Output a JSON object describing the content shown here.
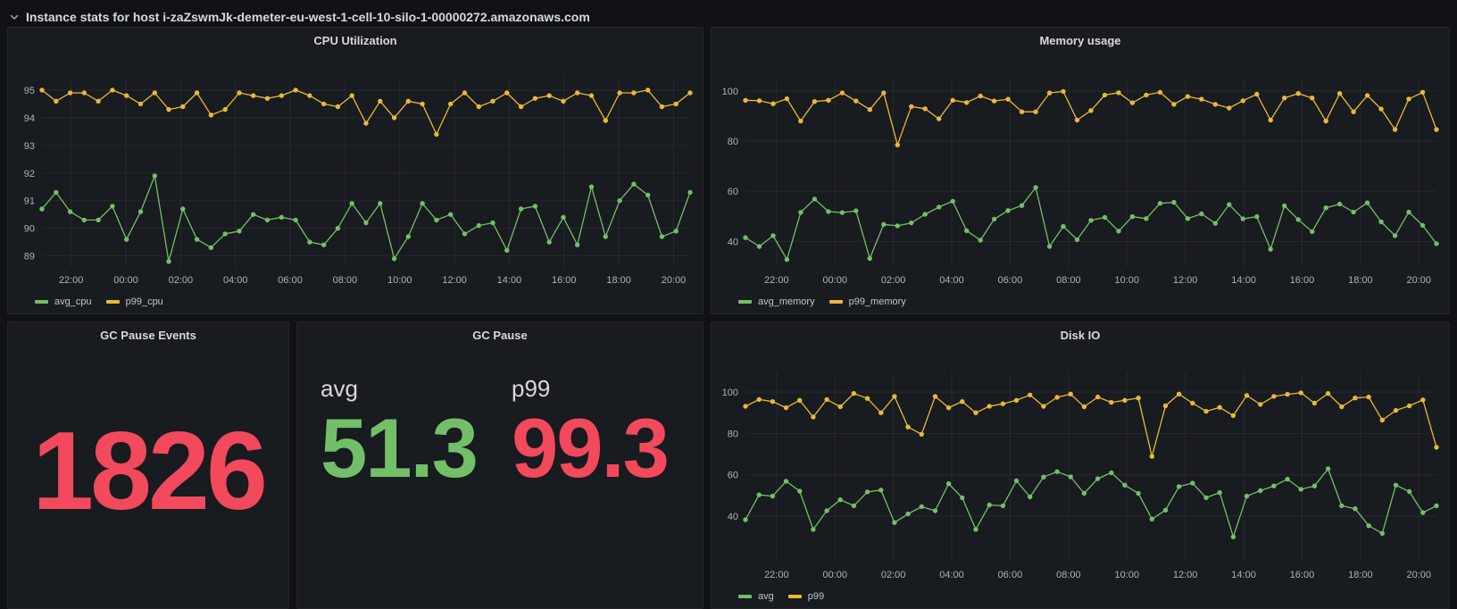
{
  "page": {
    "row_header": {
      "title": "Instance stats for host i-zaZswmJk-demeter-eu-west-1-cell-10-silo-1-00000272.amazonaws.com",
      "chevron_icon": "chevron-down"
    }
  },
  "colors": {
    "green": "#73BF69",
    "yellow": "#EAB839",
    "red": "#F2495C",
    "panel_bg": "#181b1f",
    "page_bg": "#111217",
    "axis_text": "#aeb3bc",
    "grid": "rgba(204,204,220,0.08)"
  },
  "chart_data": [
    {
      "type": "line",
      "title": "CPU Utilization",
      "xlabel": "",
      "ylabel": "",
      "ylim": [
        88.6,
        95.45
      ],
      "y_ticks": [
        89,
        90,
        91,
        92,
        93,
        94,
        95
      ],
      "x_tick_labels": [
        "22:00",
        "00:00",
        "02:00",
        "04:00",
        "06:00",
        "08:00",
        "10:00",
        "12:00",
        "14:00",
        "16:00",
        "18:00",
        "20:00"
      ],
      "x_first_tick_frac": 0.045,
      "x_tick_step_frac": 0.0845,
      "grid": true,
      "legend_position": "bottom-left",
      "series": [
        {
          "name": "avg_cpu",
          "color": "#73BF69",
          "values": [
            90.7,
            91.3,
            90.6,
            90.3,
            90.3,
            90.8,
            89.6,
            90.6,
            91.9,
            88.8,
            90.7,
            89.6,
            89.3,
            89.8,
            89.9,
            90.5,
            90.3,
            90.4,
            90.3,
            89.5,
            89.4,
            90.0,
            90.9,
            90.2,
            90.9,
            88.9,
            89.7,
            90.9,
            90.3,
            90.5,
            89.8,
            90.1,
            90.2,
            89.2,
            90.7,
            90.8,
            89.5,
            90.4,
            89.4,
            91.5,
            89.7,
            91.0,
            91.6,
            91.2,
            89.7,
            89.9,
            91.3
          ]
        },
        {
          "name": "p99_cpu",
          "color": "#EAB839",
          "values": [
            95.0,
            94.6,
            94.9,
            94.9,
            94.6,
            95.0,
            94.8,
            94.5,
            94.9,
            94.3,
            94.4,
            94.9,
            94.1,
            94.3,
            94.9,
            94.8,
            94.7,
            94.8,
            95.0,
            94.8,
            94.5,
            94.4,
            94.8,
            93.8,
            94.6,
            94.0,
            94.6,
            94.5,
            93.4,
            94.5,
            94.9,
            94.4,
            94.6,
            94.9,
            94.4,
            94.7,
            94.8,
            94.6,
            94.9,
            94.8,
            93.9,
            94.9,
            94.9,
            95.0,
            94.4,
            94.5,
            94.9
          ]
        }
      ]
    },
    {
      "type": "line",
      "title": "Memory usage",
      "xlabel": "",
      "ylabel": "",
      "ylim": [
        29.8,
        105.3
      ],
      "y_ticks": [
        40,
        60,
        80,
        100
      ],
      "x_tick_labels": [
        "22:00",
        "00:00",
        "02:00",
        "04:00",
        "06:00",
        "08:00",
        "10:00",
        "12:00",
        "14:00",
        "16:00",
        "18:00",
        "20:00"
      ],
      "x_first_tick_frac": 0.045,
      "x_tick_step_frac": 0.0845,
      "grid": true,
      "legend_position": "bottom-left",
      "series": [
        {
          "name": "avg_memory",
          "color": "#73BF69",
          "values": [
            41.5,
            38.0,
            42.3,
            32.8,
            51.6,
            56.9,
            51.9,
            51.5,
            52.2,
            33.2,
            46.8,
            46.2,
            47.4,
            50.8,
            53.7,
            56.0,
            44.3,
            40.5,
            48.9,
            52.3,
            54.3,
            61.5,
            38.0,
            46.0,
            40.7,
            48.4,
            49.6,
            44.1,
            49.9,
            49.1,
            55.2,
            55.6,
            49.1,
            51.0,
            47.2,
            54.7,
            49.0,
            49.9,
            36.9,
            54.2,
            48.7,
            43.9,
            53.4,
            54.9,
            51.7,
            55.4,
            47.8,
            42.3,
            51.7,
            46.4,
            39.1
          ]
        },
        {
          "name": "p99_memory",
          "color": "#EAB839",
          "values": [
            96.3,
            96.1,
            94.9,
            96.9,
            88.0,
            95.8,
            96.3,
            99.2,
            96.0,
            92.6,
            99.2,
            78.5,
            93.8,
            92.9,
            88.9,
            96.3,
            95.4,
            98.0,
            96.0,
            96.7,
            91.7,
            91.7,
            99.2,
            99.8,
            88.4,
            92.2,
            98.4,
            99.3,
            95.3,
            98.4,
            99.5,
            94.7,
            97.8,
            96.7,
            94.7,
            93.2,
            96.1,
            98.7,
            88.4,
            97.2,
            99.0,
            97.2,
            88.0,
            99.0,
            91.7,
            98.2,
            92.8,
            84.6,
            96.8,
            99.5,
            84.6
          ]
        }
      ]
    },
    {
      "type": "line",
      "title": "Disk IO",
      "xlabel": "",
      "ylabel": "",
      "ylim": [
        18,
        109.5
      ],
      "y_ticks": [
        40,
        60,
        80,
        100
      ],
      "x_tick_labels": [
        "22:00",
        "00:00",
        "02:00",
        "04:00",
        "06:00",
        "08:00",
        "10:00",
        "12:00",
        "14:00",
        "16:00",
        "18:00",
        "20:00"
      ],
      "x_first_tick_frac": 0.045,
      "x_tick_step_frac": 0.0845,
      "grid": true,
      "legend_position": "bottom-left",
      "series": [
        {
          "name": "avg",
          "color": "#73BF69",
          "values": [
            38.3,
            50.3,
            49.7,
            56.9,
            52.1,
            33.6,
            42.6,
            47.9,
            45.0,
            51.7,
            52.6,
            36.9,
            41.1,
            44.6,
            42.6,
            55.7,
            48.9,
            33.6,
            45.4,
            45.0,
            57.1,
            49.3,
            58.9,
            61.5,
            59.0,
            51.0,
            58.1,
            61.0,
            55.0,
            51.0,
            38.6,
            42.9,
            54.3,
            56.0,
            48.9,
            51.4,
            30.0,
            49.7,
            52.3,
            54.6,
            57.9,
            53.0,
            54.6,
            62.9,
            45.0,
            43.6,
            35.4,
            31.7,
            55.0,
            51.9,
            41.7,
            45.0
          ]
        },
        {
          "name": "p99",
          "color": "#EAB839",
          "values": [
            93.1,
            96.4,
            95.4,
            92.4,
            96.0,
            87.9,
            96.4,
            92.9,
            99.3,
            96.9,
            90.0,
            97.9,
            83.1,
            79.6,
            97.9,
            92.4,
            95.4,
            90.0,
            93.1,
            94.3,
            96.0,
            98.6,
            93.1,
            97.4,
            99.0,
            92.9,
            97.6,
            95.0,
            96.0,
            97.1,
            68.9,
            93.3,
            99.0,
            94.6,
            90.7,
            92.6,
            88.6,
            98.3,
            94.0,
            97.9,
            98.9,
            99.6,
            94.6,
            99.3,
            92.9,
            97.1,
            97.6,
            86.4,
            91.1,
            93.3,
            96.2,
            73.3
          ]
        }
      ]
    }
  ],
  "stat_panels": {
    "gc_pause_events": {
      "title": "GC Pause Events",
      "value": "1826",
      "color": "#F2495C"
    },
    "gc_pause": {
      "title": "GC Pause",
      "stats": [
        {
          "label": "avg",
          "value": "51.3",
          "color": "#73BF69"
        },
        {
          "label": "p99",
          "value": "99.3",
          "color": "#F2495C"
        }
      ]
    }
  }
}
